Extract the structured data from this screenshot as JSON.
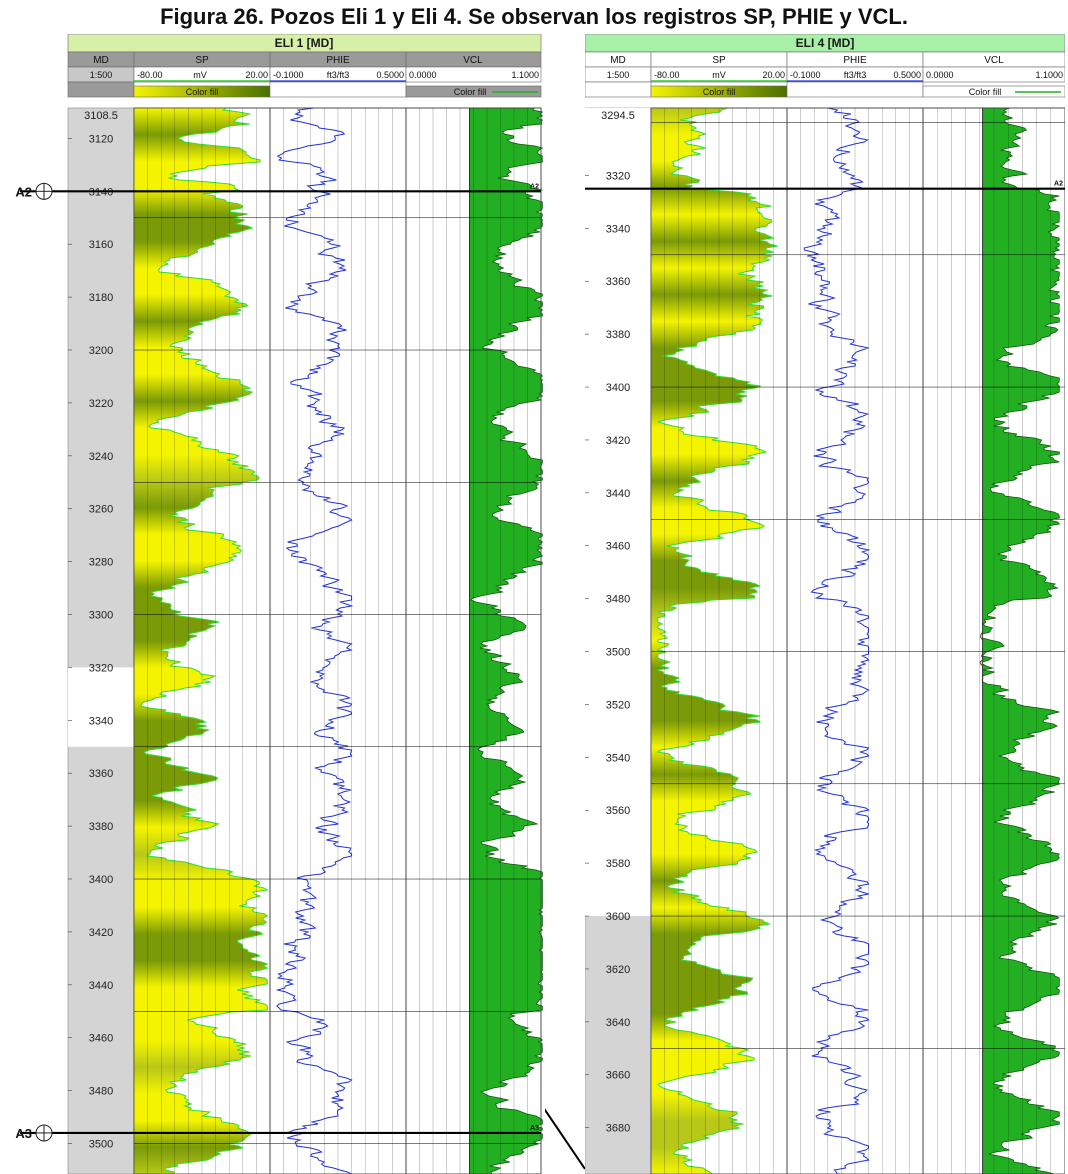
{
  "figure_title": "Figura 26. Pozos Eli 1 y Eli 4. Se observan los registros SP, PHIE y VCL.",
  "colors": {
    "sp_yellow": "#f4f400",
    "sp_green": "#6b8e00",
    "vcl_green": "#22b022",
    "sand_yellow": "#f2ee20",
    "phie_line": "#2233dd",
    "header_green": "#d7f0a8",
    "header_green2": "#a8f0a8"
  },
  "wells": [
    {
      "name": "ELI 1 [MD]",
      "md_label": "MD",
      "scale": "1:500",
      "sp": {
        "name": "SP",
        "min": "-80.00",
        "unit": "mV",
        "max": "20.00",
        "fill": "Color fill"
      },
      "phie": {
        "name": "PHIE",
        "min": "-0.1000",
        "unit": "ft3/ft3",
        "max": "0.5000"
      },
      "vcl": {
        "name": "VCL",
        "min": "0.0000",
        "max": "1.1000",
        "fill": "Color fill"
      },
      "top_depth": "3108.5",
      "depth_ticks": [
        "3120",
        "3140",
        "3160",
        "3180",
        "3200",
        "3220",
        "3240",
        "3260",
        "3280",
        "3300",
        "3320",
        "3340",
        "3360",
        "3380",
        "3400",
        "3420",
        "3440",
        "3460",
        "3480",
        "3500"
      ],
      "markers": [
        {
          "name": "A2",
          "depth": 3140
        },
        {
          "name": "A3",
          "depth": 3496
        }
      ]
    },
    {
      "name": "ELI 4 [MD]",
      "md_label": "MD",
      "scale": "1:500",
      "sp": {
        "name": "SP",
        "min": "-80.00",
        "unit": "mV",
        "max": "20.00",
        "fill": "Color fill"
      },
      "phie": {
        "name": "PHIE",
        "min": "-0.1000",
        "unit": "ft3/ft3",
        "max": "0.5000"
      },
      "vcl": {
        "name": "VCL",
        "min": "0.0000",
        "max": "1.1000",
        "fill": "Color fill"
      },
      "top_depth": "3294.5",
      "depth_ticks": [
        "3320",
        "3340",
        "3360",
        "3380",
        "3400",
        "3420",
        "3440",
        "3460",
        "3480",
        "3500",
        "3520",
        "3540",
        "3560",
        "3580",
        "3600",
        "3620",
        "3640",
        "3660",
        "3680"
      ],
      "markers": [
        {
          "name": "A2",
          "depth": 3325
        }
      ]
    }
  ]
}
